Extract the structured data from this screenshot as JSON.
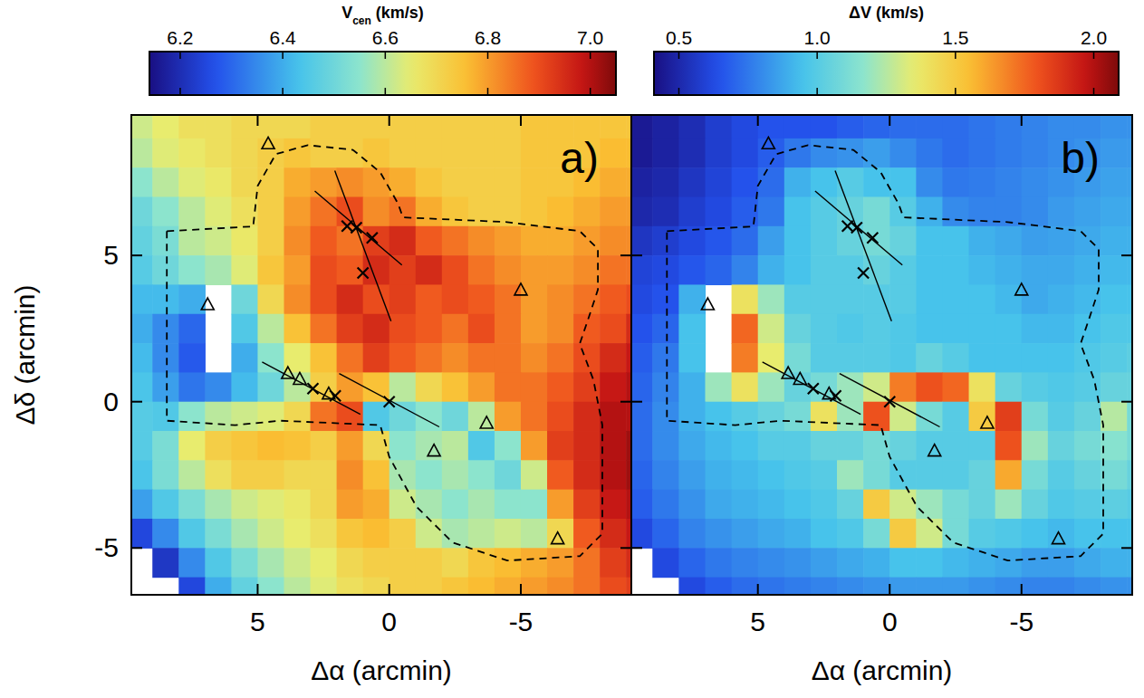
{
  "chart_data": [
    {
      "type": "heatmap",
      "label": "a)",
      "x_label": "Δα (arcmin)",
      "y_label": "Δδ (arcmin)",
      "xlim": [
        9.8,
        -9.2
      ],
      "ylim": [
        -6.6,
        9.8
      ],
      "xticks": [
        5,
        0,
        -5
      ],
      "yticks": [
        -5,
        0,
        5
      ],
      "tick_labels": true,
      "x": [
        9.5,
        8.5,
        7.5,
        6.5,
        5.5,
        4.5,
        3.5,
        2.5,
        1.5,
        0.5,
        -0.5,
        -1.5,
        -2.5,
        -3.5,
        -4.5,
        -5.5,
        -6.5,
        -7.5,
        -8.5,
        -9.5
      ],
      "y": [
        9.5,
        8.5,
        7.5,
        6.5,
        5.5,
        4.5,
        3.5,
        2.5,
        1.5,
        0.5,
        -0.5,
        -1.5,
        -2.5,
        -3.5,
        -4.5,
        -5.5,
        -6.5
      ],
      "values": [
        [
          6.62,
          6.65,
          6.68,
          6.68,
          6.7,
          6.7,
          6.7,
          6.72,
          6.72,
          6.72,
          6.72,
          6.72,
          6.72,
          6.72,
          6.72,
          6.74,
          6.74,
          6.74,
          6.74,
          6.74
        ],
        [
          6.6,
          6.64,
          6.66,
          6.68,
          6.7,
          6.72,
          6.74,
          6.72,
          6.72,
          6.74,
          6.72,
          6.72,
          6.72,
          6.72,
          6.72,
          6.74,
          6.74,
          6.74,
          6.76,
          6.76
        ],
        [
          6.55,
          6.6,
          6.64,
          6.66,
          6.7,
          6.72,
          6.78,
          6.8,
          6.82,
          6.8,
          6.78,
          6.74,
          6.72,
          6.72,
          6.72,
          6.74,
          6.74,
          6.76,
          6.78,
          6.78
        ],
        [
          6.5,
          6.55,
          6.6,
          6.64,
          6.68,
          6.72,
          6.8,
          6.85,
          6.9,
          6.82,
          6.85,
          6.78,
          6.74,
          6.72,
          6.72,
          6.74,
          6.76,
          6.78,
          6.8,
          6.8
        ],
        [
          6.48,
          6.52,
          6.6,
          6.62,
          6.66,
          6.72,
          6.82,
          6.88,
          6.85,
          6.92,
          6.95,
          6.88,
          6.85,
          6.82,
          6.8,
          6.78,
          6.78,
          6.8,
          6.82,
          6.82
        ],
        [
          6.46,
          6.5,
          6.55,
          6.58,
          6.64,
          6.74,
          6.8,
          6.9,
          6.88,
          6.95,
          6.92,
          6.95,
          6.9,
          6.85,
          6.82,
          6.8,
          6.8,
          6.82,
          6.85,
          6.85
        ],
        [
          6.42,
          6.42,
          6.4,
          null,
          6.5,
          6.7,
          6.82,
          6.9,
          6.95,
          6.9,
          6.92,
          6.88,
          6.9,
          6.88,
          6.85,
          6.8,
          6.82,
          6.85,
          6.88,
          6.9
        ],
        [
          6.4,
          6.35,
          6.3,
          null,
          6.45,
          6.6,
          6.75,
          6.85,
          6.92,
          6.95,
          6.9,
          6.88,
          6.85,
          6.9,
          6.85,
          6.8,
          6.82,
          6.88,
          6.9,
          6.95
        ],
        [
          6.42,
          6.35,
          6.28,
          null,
          6.4,
          6.55,
          6.65,
          6.75,
          6.85,
          6.92,
          6.88,
          6.85,
          6.82,
          6.85,
          6.85,
          6.82,
          6.85,
          6.9,
          6.95,
          6.98
        ],
        [
          6.44,
          6.38,
          6.32,
          6.35,
          6.42,
          6.5,
          6.6,
          6.72,
          6.8,
          6.75,
          6.6,
          6.7,
          6.75,
          6.8,
          6.85,
          6.85,
          6.88,
          6.92,
          6.98,
          7.0
        ],
        [
          6.46,
          6.45,
          6.55,
          6.6,
          6.62,
          6.64,
          6.7,
          6.85,
          6.9,
          6.45,
          6.5,
          6.55,
          6.5,
          6.6,
          6.8,
          6.85,
          6.9,
          6.95,
          7.0,
          7.0
        ],
        [
          6.46,
          6.52,
          6.65,
          6.72,
          6.74,
          6.76,
          6.75,
          6.72,
          6.8,
          6.7,
          6.55,
          6.58,
          6.6,
          6.45,
          6.55,
          6.8,
          6.92,
          6.95,
          7.0,
          7.02
        ],
        [
          6.44,
          6.52,
          6.6,
          6.68,
          6.72,
          6.72,
          6.7,
          6.7,
          6.82,
          6.75,
          6.58,
          6.55,
          6.58,
          6.55,
          6.5,
          6.62,
          6.88,
          6.95,
          7.0,
          7.02
        ],
        [
          6.38,
          6.45,
          6.52,
          6.58,
          6.62,
          6.64,
          6.66,
          6.7,
          6.8,
          6.78,
          6.62,
          6.58,
          6.55,
          6.58,
          6.55,
          6.55,
          6.8,
          6.92,
          6.98,
          7.0
        ],
        [
          6.25,
          6.35,
          6.45,
          6.52,
          6.58,
          6.62,
          6.65,
          6.68,
          6.74,
          6.76,
          6.72,
          6.62,
          6.58,
          6.6,
          6.62,
          6.6,
          6.7,
          6.88,
          6.95,
          6.98
        ],
        [
          null,
          6.22,
          6.35,
          6.45,
          6.52,
          6.58,
          6.62,
          6.65,
          6.7,
          6.72,
          6.72,
          6.72,
          6.7,
          6.74,
          6.76,
          6.78,
          6.8,
          6.85,
          6.92,
          6.95
        ],
        [
          null,
          null,
          6.25,
          6.4,
          6.48,
          6.55,
          6.6,
          6.64,
          6.68,
          6.7,
          6.72,
          6.72,
          6.74,
          6.76,
          6.78,
          6.8,
          6.82,
          6.85,
          6.9,
          6.92
        ]
      ],
      "colorbar": {
        "label_parts": [
          {
            "text": "V"
          },
          {
            "text": "cen",
            "sub": true
          },
          {
            "text": " (km/s)"
          }
        ],
        "range": [
          6.14,
          7.05
        ],
        "ticks": [
          6.2,
          6.4,
          6.6,
          6.8,
          {
            "value": 7,
            "label": "7.0"
          }
        ]
      },
      "series": [
        {
          "type": "line",
          "line_style": "dashed",
          "x": [
            8.45,
            5.17,
            5.0,
            4.31,
            3.1,
            1.38,
            0.34,
            -0.34,
            -0.52,
            -4.48,
            -7.24,
            -7.93,
            -7.93,
            -7.59,
            -7.24,
            -7.76,
            -8.1,
            -8.1,
            -7.24,
            -4.48,
            -2.41,
            -1.03,
            0.0,
            0.34,
            4.14,
            5.86,
            8.45,
            8.45
          ],
          "values": [
            5.83,
            5.99,
            7.38,
            8.46,
            8.77,
            8.61,
            7.84,
            6.76,
            6.3,
            6.14,
            5.83,
            5.22,
            3.83,
            2.9,
            1.98,
            0.74,
            -0.8,
            -4.51,
            -5.28,
            -5.43,
            -4.81,
            -3.58,
            -1.88,
            -0.8,
            -0.65,
            -0.8,
            -0.65,
            5.83
          ]
        },
        {
          "type": "line",
          "line_style": "solid",
          "x": [
            2.83,
            -0.48
          ],
          "values": [
            7.2,
            4.67
          ]
        },
        {
          "type": "line",
          "line_style": "solid",
          "x": [
            2.07,
            -0.07
          ],
          "values": [
            7.9,
            2.75
          ]
        },
        {
          "type": "line",
          "line_style": "solid",
          "x": [
            4.83,
            1.1
          ],
          "values": [
            1.36,
            -0.43
          ]
        },
        {
          "type": "line",
          "line_style": "solid",
          "x": [
            1.9,
            -1.9
          ],
          "values": [
            0.96,
            -0.86
          ]
        },
        {
          "type": "scatter",
          "marker": "triangle",
          "x": [
            4.6,
            6.9,
            3.85,
            3.4,
            2.3,
            -1.7,
            -3.7,
            -5.0,
            -6.4
          ],
          "values": [
            8.8,
            3.3,
            0.95,
            0.75,
            0.25,
            -1.7,
            -0.75,
            3.8,
            -4.7
          ]
        },
        {
          "type": "scatter",
          "marker": "cross",
          "x": [
            1.6,
            1.25,
            0.65,
            1.0,
            2.9,
            2.05,
            0.0
          ],
          "values": [
            6.0,
            5.95,
            5.6,
            4.4,
            0.45,
            0.2,
            0.0
          ]
        }
      ]
    },
    {
      "type": "heatmap",
      "label": "b)",
      "x_label": "Δα (arcmin)",
      "xlim": [
        9.8,
        -9.2
      ],
      "ylim": [
        -6.6,
        9.8
      ],
      "xticks": [
        5,
        0,
        -5
      ],
      "yticks": [
        -5,
        0,
        5
      ],
      "tick_labels": "x",
      "x": [
        9.5,
        8.5,
        7.5,
        6.5,
        5.5,
        4.5,
        3.5,
        2.5,
        1.5,
        0.5,
        -0.5,
        -1.5,
        -2.5,
        -3.5,
        -4.5,
        -5.5,
        -6.5,
        -7.5,
        -8.5,
        -9.5
      ],
      "y": [
        9.5,
        8.5,
        7.5,
        6.5,
        5.5,
        4.5,
        3.5,
        2.5,
        1.5,
        0.5,
        -0.5,
        -1.5,
        -2.5,
        -3.5,
        -4.5,
        -5.5,
        -6.5
      ],
      "values": [
        [
          0.45,
          0.48,
          0.52,
          0.58,
          0.62,
          0.65,
          0.65,
          0.65,
          0.68,
          0.7,
          0.72,
          0.72,
          0.72,
          0.74,
          0.76,
          0.78,
          0.8,
          0.8,
          0.82,
          0.82
        ],
        [
          0.45,
          0.48,
          0.52,
          0.58,
          0.62,
          0.68,
          0.75,
          0.8,
          0.82,
          0.85,
          0.8,
          0.75,
          0.72,
          0.74,
          0.76,
          0.78,
          0.8,
          0.82,
          0.84,
          0.84
        ],
        [
          0.48,
          0.5,
          0.55,
          0.6,
          0.65,
          0.72,
          0.9,
          0.95,
          1.0,
          0.95,
          0.95,
          0.8,
          0.75,
          0.76,
          0.78,
          0.8,
          0.82,
          0.84,
          0.86,
          0.86
        ],
        [
          0.5,
          0.52,
          0.58,
          0.62,
          0.68,
          0.75,
          0.95,
          1.0,
          1.05,
          1.1,
          1.0,
          0.9,
          0.8,
          0.78,
          0.78,
          0.8,
          0.84,
          0.86,
          0.88,
          0.88
        ],
        [
          0.55,
          0.58,
          0.62,
          0.66,
          0.72,
          0.85,
          0.95,
          1.0,
          1.05,
          1.1,
          1.05,
          0.95,
          0.95,
          0.9,
          0.88,
          0.85,
          0.86,
          0.88,
          0.9,
          0.9
        ],
        [
          0.6,
          0.62,
          0.66,
          0.7,
          0.78,
          0.9,
          0.95,
          1.0,
          1.0,
          1.05,
          1.0,
          0.95,
          0.95,
          0.92,
          0.9,
          0.88,
          0.88,
          0.9,
          0.92,
          0.92
        ],
        [
          0.62,
          0.65,
          0.9,
          null,
          1.4,
          1.2,
          1.0,
          1.0,
          1.0,
          1.0,
          1.0,
          0.95,
          0.95,
          0.95,
          0.92,
          0.88,
          0.9,
          0.92,
          0.95,
          0.95
        ],
        [
          0.65,
          0.7,
          0.95,
          null,
          1.75,
          1.3,
          1.05,
          1.0,
          0.98,
          1.0,
          0.98,
          0.95,
          0.95,
          0.95,
          0.95,
          0.92,
          0.92,
          0.95,
          0.98,
          0.98
        ],
        [
          0.68,
          0.75,
          0.95,
          null,
          1.7,
          1.35,
          1.1,
          1.0,
          1.0,
          1.0,
          0.98,
          1.05,
          1.0,
          0.95,
          0.95,
          0.95,
          0.95,
          0.98,
          1.0,
          1.02
        ],
        [
          0.7,
          0.78,
          0.9,
          1.2,
          1.4,
          1.2,
          1.05,
          1.1,
          1.2,
          1.3,
          1.7,
          1.8,
          1.75,
          1.4,
          1.05,
          1.0,
          0.98,
          1.0,
          1.05,
          1.05
        ],
        [
          0.72,
          0.8,
          0.9,
          0.95,
          1.0,
          1.05,
          1.1,
          1.4,
          1.2,
          1.8,
          1.3,
          1.1,
          1.0,
          1.5,
          1.85,
          1.1,
          1.0,
          1.05,
          1.25,
          1.1
        ],
        [
          0.72,
          0.8,
          0.88,
          0.92,
          0.95,
          1.0,
          1.0,
          1.05,
          1.05,
          1.1,
          1.05,
          1.0,
          1.0,
          1.0,
          1.8,
          1.2,
          1.05,
          1.1,
          1.15,
          1.1
        ],
        [
          0.7,
          0.78,
          0.85,
          0.9,
          0.92,
          0.95,
          0.98,
          1.0,
          1.2,
          1.1,
          1.0,
          1.0,
          1.0,
          1.05,
          1.6,
          1.1,
          1.0,
          1.05,
          1.1,
          1.05
        ],
        [
          0.68,
          0.75,
          0.82,
          0.88,
          0.9,
          0.92,
          0.95,
          0.98,
          1.05,
          1.5,
          1.3,
          1.2,
          1.1,
          1.05,
          1.2,
          1.05,
          0.98,
          1.0,
          1.02,
          1.0
        ],
        [
          0.62,
          0.7,
          0.78,
          0.82,
          0.85,
          0.88,
          0.9,
          0.95,
          0.98,
          1.1,
          1.5,
          1.3,
          1.1,
          1.0,
          0.98,
          0.95,
          0.92,
          0.95,
          0.95,
          0.95
        ],
        [
          null,
          0.62,
          0.7,
          0.75,
          0.78,
          0.8,
          0.82,
          0.85,
          0.88,
          0.9,
          0.95,
          0.95,
          0.92,
          0.9,
          0.88,
          0.85,
          0.85,
          0.88,
          0.9,
          0.9
        ],
        [
          null,
          null,
          0.62,
          0.68,
          0.72,
          0.74,
          0.76,
          0.78,
          0.8,
          0.82,
          0.84,
          0.84,
          0.84,
          0.82,
          0.8,
          0.78,
          0.78,
          0.8,
          0.82,
          0.82
        ]
      ],
      "colorbar": {
        "label_parts": [
          {
            "text": "ΔV (km/s)"
          }
        ],
        "range": [
          0.41,
          2.09
        ],
        "ticks": [
          0.5,
          {
            "value": 1,
            "label": "1.0"
          },
          1.5,
          {
            "value": 2,
            "label": "2.0"
          }
        ]
      },
      "series": [
        {
          "type": "line",
          "line_style": "dashed",
          "x": [
            8.45,
            5.17,
            5.0,
            4.31,
            3.1,
            1.38,
            0.34,
            -0.34,
            -0.52,
            -4.48,
            -7.24,
            -7.93,
            -7.93,
            -7.59,
            -7.24,
            -7.76,
            -8.1,
            -8.1,
            -7.24,
            -4.48,
            -2.41,
            -1.03,
            0.0,
            0.34,
            4.14,
            5.86,
            8.45,
            8.45
          ],
          "values": [
            5.83,
            5.99,
            7.38,
            8.46,
            8.77,
            8.61,
            7.84,
            6.76,
            6.3,
            6.14,
            5.83,
            5.22,
            3.83,
            2.9,
            1.98,
            0.74,
            -0.8,
            -4.51,
            -5.28,
            -5.43,
            -4.81,
            -3.58,
            -1.88,
            -0.8,
            -0.65,
            -0.8,
            -0.65,
            5.83
          ]
        },
        {
          "type": "line",
          "line_style": "solid",
          "x": [
            2.83,
            -0.48
          ],
          "values": [
            7.2,
            4.67
          ]
        },
        {
          "type": "line",
          "line_style": "solid",
          "x": [
            2.07,
            -0.07
          ],
          "values": [
            7.9,
            2.75
          ]
        },
        {
          "type": "line",
          "line_style": "solid",
          "x": [
            4.83,
            1.1
          ],
          "values": [
            1.36,
            -0.43
          ]
        },
        {
          "type": "line",
          "line_style": "solid",
          "x": [
            1.9,
            -1.9
          ],
          "values": [
            0.96,
            -0.86
          ]
        },
        {
          "type": "scatter",
          "marker": "triangle",
          "x": [
            4.6,
            6.9,
            3.85,
            3.4,
            2.3,
            -1.7,
            -3.7,
            -5.0,
            -6.4
          ],
          "values": [
            8.8,
            3.3,
            0.95,
            0.75,
            0.25,
            -1.7,
            -0.75,
            3.8,
            -4.7
          ]
        },
        {
          "type": "scatter",
          "marker": "cross",
          "x": [
            1.6,
            1.25,
            0.65,
            1.0,
            2.9,
            2.05,
            0.0
          ],
          "values": [
            6.0,
            5.95,
            5.6,
            4.4,
            0.45,
            0.2,
            0.0
          ]
        }
      ]
    }
  ]
}
